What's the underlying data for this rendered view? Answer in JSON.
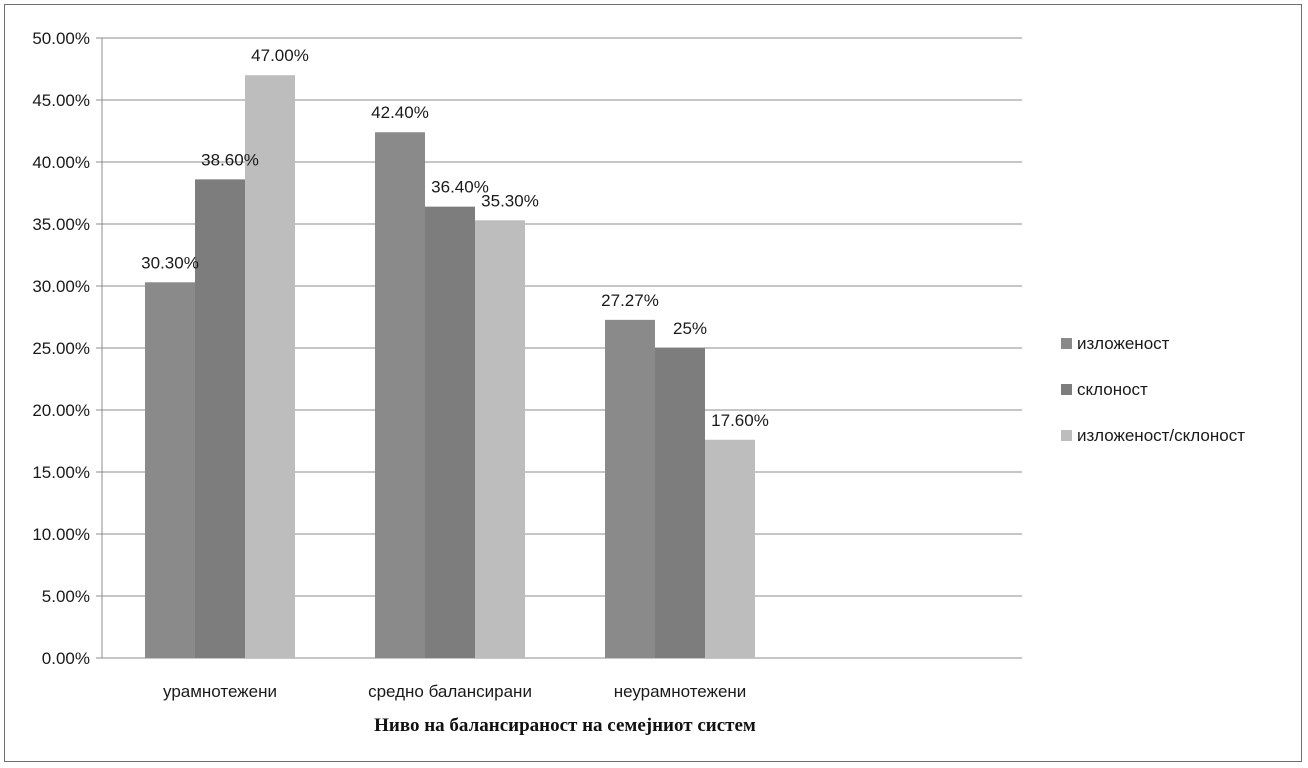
{
  "chart_data": {
    "type": "bar",
    "categories": [
      "урамнотежени",
      "средно балансирани",
      "неурамнотежени"
    ],
    "series": [
      {
        "name": "изложеност",
        "values": [
          30.3,
          42.4,
          27.27
        ],
        "labels": [
          "30.30%",
          "42.40%",
          "27.27%"
        ],
        "color": "#8a8a8a"
      },
      {
        "name": "склоност",
        "values": [
          38.6,
          36.4,
          25
        ],
        "labels": [
          "38.60%",
          "36.40%",
          "25%"
        ],
        "color": "#7d7d7d"
      },
      {
        "name": "изложеност/склоност",
        "values": [
          47.0,
          35.3,
          17.6
        ],
        "labels": [
          "47.00%",
          "35.30%",
          "17.60%"
        ],
        "color": "#bdbdbd"
      }
    ],
    "yticks": [
      "0.00%",
      "5.00%",
      "10.00%",
      "15.00%",
      "20.00%",
      "25.00%",
      "30.00%",
      "35.00%",
      "40.00%",
      "45.00%",
      "50.00%"
    ],
    "ylim": [
      0,
      50
    ],
    "xlabel": "Ниво на балансираност на семејниот систем",
    "ylabel": "",
    "title": "",
    "grid": true,
    "legend": "right"
  }
}
